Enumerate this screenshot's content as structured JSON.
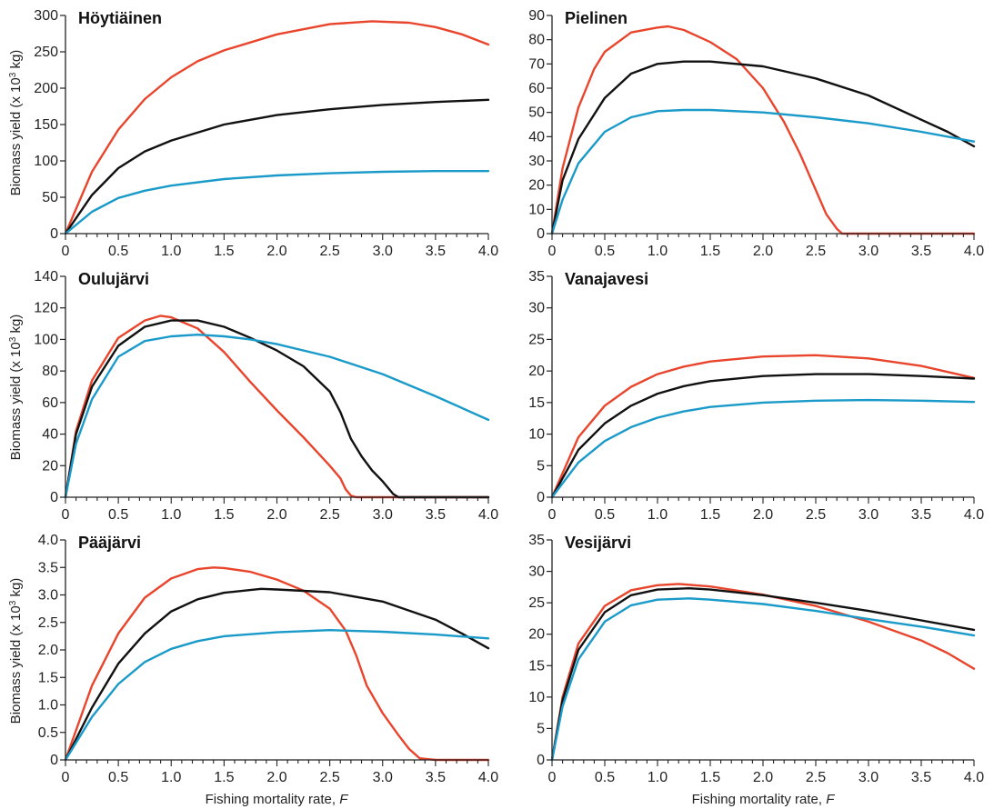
{
  "figure": {
    "ylabel_main": "Biomass yield (x 10",
    "ylabel_sup": "3",
    "ylabel_tail": " kg)",
    "xlabel_main": "Fishing mortality rate, ",
    "xlabel_var": "F"
  },
  "colors": {
    "red": "#e8452c",
    "black": "#111111",
    "blue": "#1a9ac9"
  },
  "chart_data": [
    {
      "type": "line",
      "title": "Höytiäinen",
      "xlim": [
        0,
        4.0
      ],
      "ylim": [
        0,
        300
      ],
      "xticks": [
        "0",
        "0.5",
        "1.0",
        "1.5",
        "2.0",
        "2.5",
        "3.0",
        "3.5",
        "4.0"
      ],
      "yticks": [
        "0",
        "50",
        "100",
        "150",
        "200",
        "250",
        "300"
      ],
      "series": [
        {
          "color": "red",
          "x": [
            0,
            0.25,
            0.5,
            0.75,
            1.0,
            1.25,
            1.5,
            2.0,
            2.5,
            2.9,
            3.25,
            3.5,
            3.75,
            4.0
          ],
          "y": [
            0,
            85,
            143,
            185,
            215,
            237,
            252,
            274,
            288,
            292,
            290,
            284,
            274,
            260
          ]
        },
        {
          "color": "black",
          "x": [
            0,
            0.25,
            0.5,
            0.75,
            1.0,
            1.5,
            2.0,
            2.5,
            3.0,
            3.5,
            4.0
          ],
          "y": [
            0,
            53,
            90,
            113,
            128,
            150,
            163,
            171,
            177,
            181,
            184
          ]
        },
        {
          "color": "blue",
          "x": [
            0,
            0.25,
            0.5,
            0.75,
            1.0,
            1.5,
            2.0,
            2.5,
            3.0,
            3.5,
            4.0
          ],
          "y": [
            0,
            30,
            49,
            59,
            66,
            75,
            80,
            83,
            85,
            86,
            86
          ]
        }
      ]
    },
    {
      "type": "line",
      "title": "Pielinen",
      "xlim": [
        0,
        4.0
      ],
      "ylim": [
        0,
        90
      ],
      "xticks": [
        "0",
        "0.5",
        "1.0",
        "1.5",
        "2.0",
        "2.5",
        "3.0",
        "3.5",
        "4.0"
      ],
      "yticks": [
        "0",
        "10",
        "20",
        "30",
        "40",
        "50",
        "60",
        "70",
        "80",
        "90"
      ],
      "series": [
        {
          "color": "red",
          "x": [
            0,
            0.1,
            0.25,
            0.4,
            0.5,
            0.75,
            1.0,
            1.1,
            1.25,
            1.5,
            1.75,
            2.0,
            2.2,
            2.35,
            2.5,
            2.6,
            2.7,
            2.75,
            2.8,
            3.0,
            3.5,
            4.0
          ],
          "y": [
            0,
            27,
            52,
            68,
            75,
            83,
            85,
            85.5,
            84,
            79,
            72,
            60,
            46,
            33,
            18,
            8,
            2,
            0,
            0,
            0,
            0,
            0
          ]
        },
        {
          "color": "black",
          "x": [
            0,
            0.1,
            0.25,
            0.5,
            0.75,
            1.0,
            1.25,
            1.5,
            2.0,
            2.5,
            3.0,
            3.5,
            3.75,
            4.0
          ],
          "y": [
            0,
            22,
            39,
            56,
            66,
            70,
            71,
            71,
            69,
            64,
            57,
            47,
            42,
            36
          ]
        },
        {
          "color": "blue",
          "x": [
            0,
            0.1,
            0.25,
            0.5,
            0.75,
            1.0,
            1.25,
            1.5,
            2.0,
            2.5,
            3.0,
            3.5,
            4.0
          ],
          "y": [
            0,
            14,
            29,
            42,
            48,
            50.5,
            51,
            51,
            50,
            48,
            45.5,
            42,
            38
          ]
        }
      ]
    },
    {
      "type": "line",
      "title": "Oulujärvi",
      "xlim": [
        0,
        4.0
      ],
      "ylim": [
        0,
        140
      ],
      "xticks": [
        "0",
        "0.5",
        "1.0",
        "1.5",
        "2.0",
        "2.5",
        "3.0",
        "3.5",
        "4.0"
      ],
      "yticks": [
        "0",
        "20",
        "40",
        "60",
        "80",
        "100",
        "120",
        "140"
      ],
      "series": [
        {
          "color": "red",
          "x": [
            0,
            0.1,
            0.25,
            0.5,
            0.75,
            0.9,
            1.0,
            1.25,
            1.5,
            1.75,
            2.0,
            2.25,
            2.5,
            2.6,
            2.65,
            2.7,
            2.75,
            3.0,
            3.5,
            4.0
          ],
          "y": [
            0,
            42,
            74,
            101,
            112,
            115,
            114,
            107,
            92,
            73,
            55,
            38,
            20,
            12,
            5,
            1,
            0,
            0,
            0,
            0
          ]
        },
        {
          "color": "black",
          "x": [
            0,
            0.1,
            0.25,
            0.5,
            0.75,
            1.0,
            1.25,
            1.5,
            1.75,
            2.0,
            2.25,
            2.5,
            2.6,
            2.7,
            2.8,
            2.9,
            3.0,
            3.1,
            3.15,
            3.5,
            4.0
          ],
          "y": [
            0,
            40,
            70,
            96,
            108,
            112,
            112,
            108,
            101,
            93,
            83,
            67,
            54,
            37,
            26,
            17,
            10,
            2,
            0,
            0,
            0
          ]
        },
        {
          "color": "blue",
          "x": [
            0,
            0.1,
            0.25,
            0.5,
            0.75,
            1.0,
            1.25,
            1.5,
            1.75,
            2.0,
            2.5,
            3.0,
            3.5,
            4.0
          ],
          "y": [
            0,
            34,
            62,
            89,
            99,
            102,
            103,
            102,
            100,
            97,
            89,
            78,
            64,
            49
          ]
        }
      ]
    },
    {
      "type": "line",
      "title": "Vanajavesi",
      "xlim": [
        0,
        4.0
      ],
      "ylim": [
        0,
        35
      ],
      "xticks": [
        "0",
        "0.5",
        "1.0",
        "1.5",
        "2.0",
        "2.5",
        "3.0",
        "3.5",
        "4.0"
      ],
      "yticks": [
        "0",
        "5",
        "10",
        "15",
        "20",
        "25",
        "30",
        "35"
      ],
      "series": [
        {
          "color": "red",
          "x": [
            0,
            0.25,
            0.5,
            0.75,
            1.0,
            1.25,
            1.5,
            2.0,
            2.5,
            3.0,
            3.5,
            4.0
          ],
          "y": [
            0,
            9.5,
            14.5,
            17.5,
            19.5,
            20.7,
            21.5,
            22.3,
            22.5,
            22.0,
            20.8,
            18.9
          ]
        },
        {
          "color": "black",
          "x": [
            0,
            0.25,
            0.5,
            0.75,
            1.0,
            1.25,
            1.5,
            2.0,
            2.5,
            3.0,
            3.5,
            4.0
          ],
          "y": [
            0,
            7.5,
            11.7,
            14.5,
            16.4,
            17.6,
            18.4,
            19.2,
            19.5,
            19.5,
            19.2,
            18.8
          ]
        },
        {
          "color": "blue",
          "x": [
            0,
            0.25,
            0.5,
            0.75,
            1.0,
            1.25,
            1.5,
            2.0,
            2.5,
            3.0,
            3.5,
            4.0
          ],
          "y": [
            0,
            5.5,
            8.9,
            11.1,
            12.6,
            13.6,
            14.3,
            15.0,
            15.3,
            15.4,
            15.3,
            15.1
          ]
        }
      ]
    },
    {
      "type": "line",
      "title": "Pääjärvi",
      "xlim": [
        0,
        4.0
      ],
      "ylim": [
        0,
        4.0
      ],
      "xticks": [
        "0",
        "0.5",
        "1.0",
        "1.5",
        "2.0",
        "2.5",
        "3.0",
        "3.5",
        "4.0"
      ],
      "yticks": [
        "0",
        "0.5",
        "1.0",
        "1.5",
        "2.0",
        "2.5",
        "3.0",
        "3.5",
        "4.0"
      ],
      "series": [
        {
          "color": "red",
          "x": [
            0,
            0.25,
            0.5,
            0.75,
            1.0,
            1.25,
            1.4,
            1.5,
            1.75,
            2.0,
            2.25,
            2.5,
            2.65,
            2.75,
            2.85,
            3.0,
            3.15,
            3.25,
            3.35,
            3.5,
            4.0
          ],
          "y": [
            0,
            1.35,
            2.3,
            2.95,
            3.3,
            3.47,
            3.5,
            3.49,
            3.42,
            3.28,
            3.08,
            2.75,
            2.35,
            1.9,
            1.35,
            0.85,
            0.45,
            0.2,
            0.03,
            0,
            0
          ]
        },
        {
          "color": "black",
          "x": [
            0,
            0.25,
            0.5,
            0.75,
            1.0,
            1.25,
            1.5,
            1.85,
            2.0,
            2.5,
            3.0,
            3.5,
            3.75,
            4.0
          ],
          "y": [
            0,
            0.95,
            1.75,
            2.3,
            2.7,
            2.92,
            3.04,
            3.11,
            3.1,
            3.05,
            2.88,
            2.55,
            2.3,
            2.03
          ]
        },
        {
          "color": "blue",
          "x": [
            0,
            0.25,
            0.5,
            0.75,
            1.0,
            1.25,
            1.5,
            2.0,
            2.5,
            3.0,
            3.5,
            4.0
          ],
          "y": [
            0,
            0.78,
            1.38,
            1.78,
            2.02,
            2.16,
            2.25,
            2.32,
            2.36,
            2.33,
            2.28,
            2.21
          ]
        }
      ]
    },
    {
      "type": "line",
      "title": "Vesijärvi",
      "xlim": [
        0,
        4.0
      ],
      "ylim": [
        0,
        35
      ],
      "xticks": [
        "0",
        "0.5",
        "1.0",
        "1.5",
        "2.0",
        "2.5",
        "3.0",
        "3.5",
        "4.0"
      ],
      "yticks": [
        "0",
        "5",
        "10",
        "15",
        "20",
        "25",
        "30",
        "35"
      ],
      "series": [
        {
          "color": "red",
          "x": [
            0,
            0.1,
            0.25,
            0.5,
            0.75,
            1.0,
            1.2,
            1.5,
            2.0,
            2.5,
            3.0,
            3.5,
            3.75,
            4.0
          ],
          "y": [
            0,
            10,
            18.5,
            24.5,
            27.0,
            27.8,
            28.0,
            27.6,
            26.3,
            24.5,
            22.0,
            19.0,
            17.0,
            14.5
          ]
        },
        {
          "color": "black",
          "x": [
            0,
            0.1,
            0.25,
            0.5,
            0.75,
            1.0,
            1.3,
            1.5,
            2.0,
            2.5,
            3.0,
            3.5,
            4.0
          ],
          "y": [
            0,
            9.5,
            17.5,
            23.5,
            26.2,
            27.1,
            27.3,
            27.1,
            26.2,
            25.0,
            23.7,
            22.2,
            20.7
          ]
        },
        {
          "color": "blue",
          "x": [
            0,
            0.1,
            0.25,
            0.5,
            0.75,
            1.0,
            1.3,
            1.5,
            2.0,
            2.5,
            3.0,
            3.5,
            4.0
          ],
          "y": [
            0,
            8.5,
            16.0,
            22.0,
            24.6,
            25.5,
            25.7,
            25.5,
            24.8,
            23.7,
            22.4,
            21.2,
            19.8
          ]
        }
      ]
    }
  ]
}
